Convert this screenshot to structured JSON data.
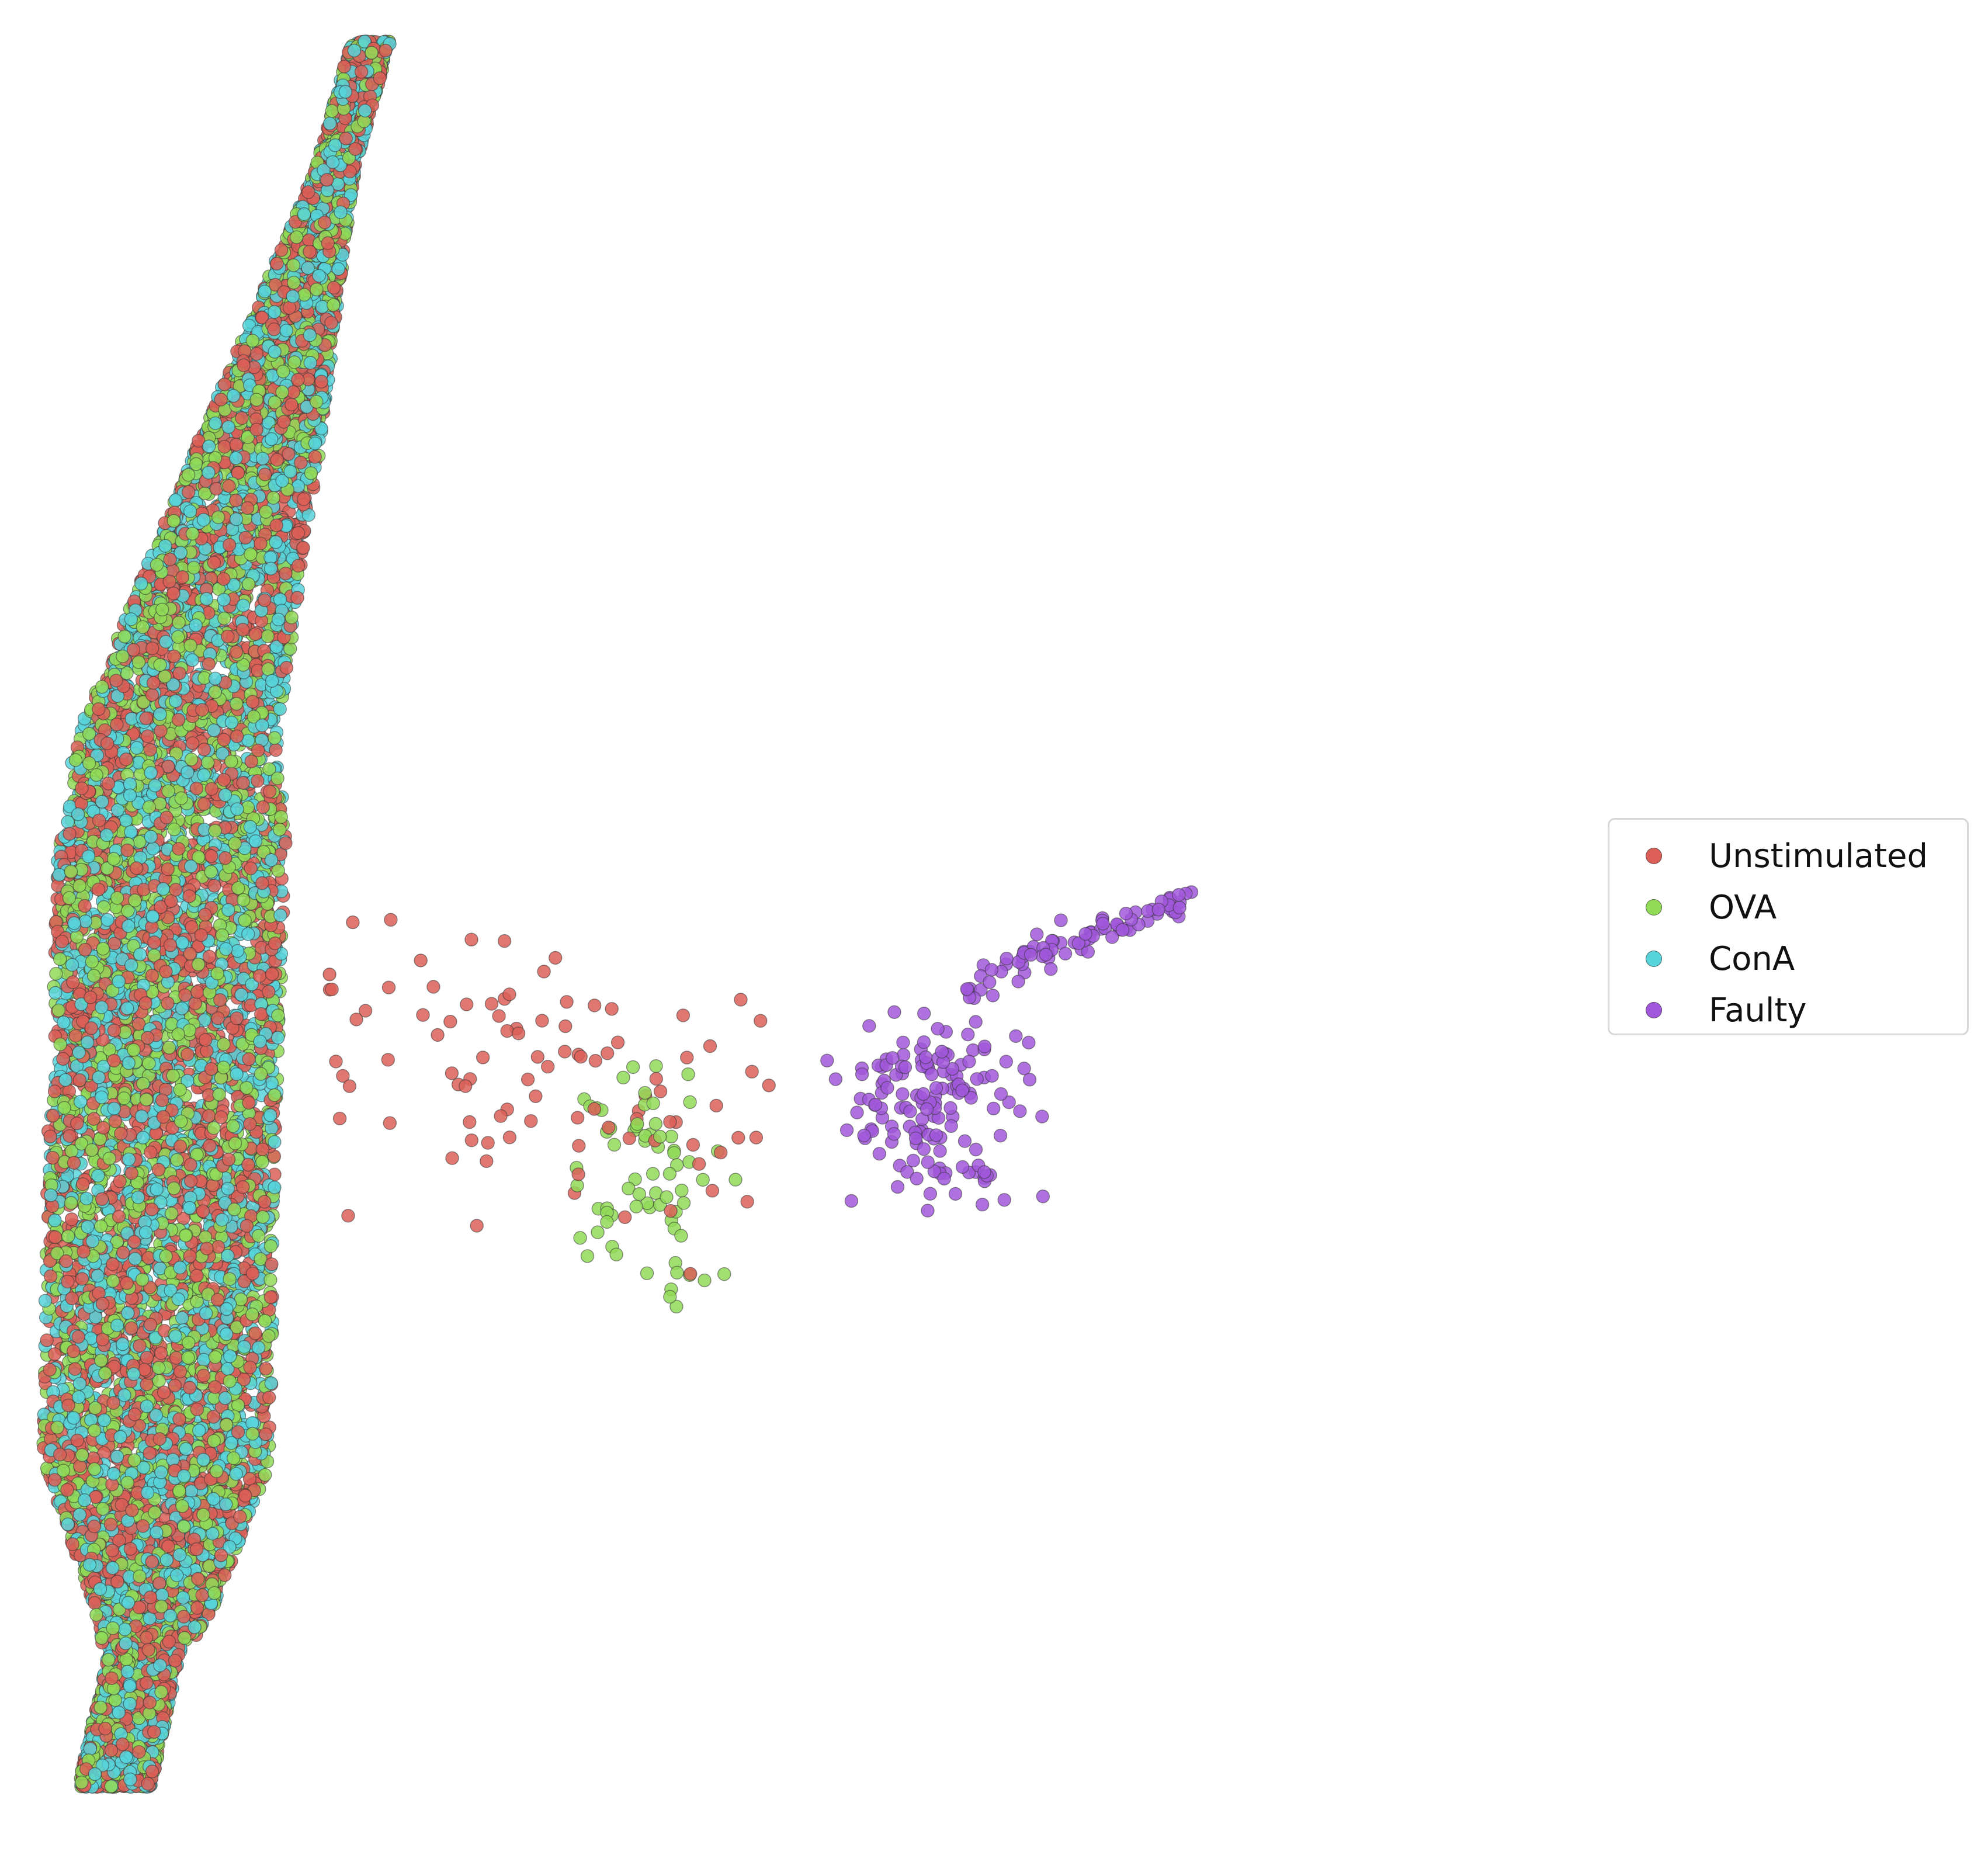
{
  "chart_data": {
    "type": "scatter",
    "title": "",
    "xlabel": "",
    "ylabel": "",
    "axes_visible": false,
    "grid": false,
    "legend_position": "right",
    "xlim": [
      0,
      100
    ],
    "ylim": [
      0,
      100
    ],
    "series": [
      {
        "name": "Unstimulated",
        "color": "#db5f57",
        "approx_count": 4200,
        "regions": [
          {
            "shape": "main-band",
            "x": [
              2,
              27
            ],
            "y": [
              2,
              99
            ]
          },
          {
            "shape": "branch",
            "x": [
              20,
              50
            ],
            "y": [
              28,
              56
            ]
          }
        ]
      },
      {
        "name": "OVA",
        "color": "#91db57",
        "approx_count": 3600,
        "regions": [
          {
            "shape": "main-band",
            "x": [
              2,
              27
            ],
            "y": [
              2,
              99
            ]
          },
          {
            "shape": "cluster",
            "x": [
              36,
              46
            ],
            "y": [
              30,
              42
            ]
          }
        ]
      },
      {
        "name": "ConA",
        "color": "#57d3db",
        "approx_count": 3800,
        "regions": [
          {
            "shape": "main-band",
            "x": [
              2,
              27
            ],
            "y": [
              2,
              99
            ]
          }
        ]
      },
      {
        "name": "Faulty",
        "color": "#a157db",
        "approx_count": 240,
        "regions": [
          {
            "shape": "cluster",
            "x": [
              54,
              66
            ],
            "y": [
              34,
              45
            ]
          },
          {
            "shape": "arm",
            "x": [
              62,
              77
            ],
            "y": [
              45,
              51
            ]
          }
        ]
      }
    ]
  }
}
